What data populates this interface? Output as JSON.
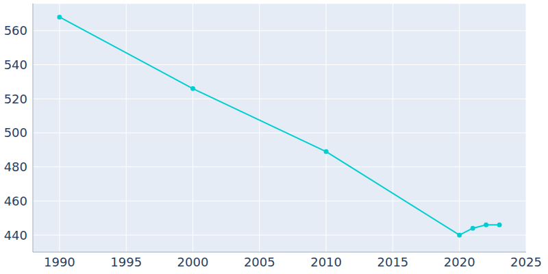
{
  "chart_data": {
    "type": "line",
    "x": [
      1990,
      2000,
      2010,
      2020,
      2021,
      2022,
      2023
    ],
    "values": [
      568,
      526,
      489,
      440,
      444,
      446,
      446
    ],
    "color": "#00ced1",
    "marker": "circle",
    "xlim": [
      1988,
      2025
    ],
    "ylim": [
      430,
      576
    ],
    "xticks": [
      1990,
      1995,
      2000,
      2005,
      2010,
      2015,
      2020,
      2025
    ],
    "yticks": [
      440,
      460,
      480,
      500,
      520,
      540,
      560
    ],
    "grid": true
  }
}
